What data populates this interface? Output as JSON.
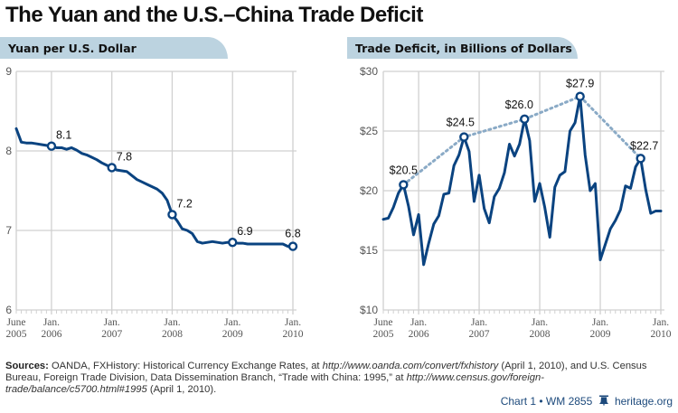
{
  "title": "The Yuan and the U.S.–China Trade Deficit",
  "colors": {
    "line": "#0a4380",
    "trend": "#8aaac6",
    "grid": "#d0d0d0",
    "tab": "#bcd3e0"
  },
  "chart_data": [
    {
      "type": "line",
      "title": "Yuan per U.S. Dollar",
      "xlabel": "",
      "ylabel": "",
      "ylim": [
        6,
        9
      ],
      "yticks": [
        "9",
        "8",
        "7",
        "6"
      ],
      "ytick_values": [
        9,
        8,
        7,
        6
      ],
      "xlim": [
        2005.4167,
        2010.0
      ],
      "xticks": [
        {
          "value": 2005.4167,
          "line1": "June",
          "line2": "2005"
        },
        {
          "value": 2006.0,
          "line1": "Jan.",
          "line2": "2006"
        },
        {
          "value": 2007.0,
          "line1": "Jan.",
          "line2": "2007"
        },
        {
          "value": 2008.0,
          "line1": "Jan.",
          "line2": "2008"
        },
        {
          "value": 2009.0,
          "line1": "Jan.",
          "line2": "2009"
        },
        {
          "value": 2010.0,
          "line1": "Jan.",
          "line2": "2010"
        }
      ],
      "grid": true,
      "series": [
        {
          "name": "Yuan per U.S. Dollar",
          "x": [
            2005.4167,
            2005.5,
            2005.5833,
            2005.6667,
            2005.75,
            2005.8333,
            2005.9167,
            2006.0,
            2006.0833,
            2006.1667,
            2006.25,
            2006.3333,
            2006.4167,
            2006.5,
            2006.5833,
            2006.6667,
            2006.75,
            2006.8333,
            2006.9167,
            2007.0,
            2007.0833,
            2007.1667,
            2007.25,
            2007.3333,
            2007.4167,
            2007.5,
            2007.5833,
            2007.6667,
            2007.75,
            2007.8333,
            2007.9167,
            2008.0,
            2008.0833,
            2008.1667,
            2008.25,
            2008.3333,
            2008.4167,
            2008.5,
            2008.5833,
            2008.6667,
            2008.75,
            2008.8333,
            2008.9167,
            2009.0,
            2009.0833,
            2009.1667,
            2009.25,
            2009.3333,
            2009.4167,
            2009.5,
            2009.5833,
            2009.6667,
            2009.75,
            2009.8333,
            2009.9167,
            2010.0
          ],
          "values": [
            8.28,
            8.11,
            8.1,
            8.1,
            8.09,
            8.08,
            8.07,
            8.06,
            8.04,
            8.04,
            8.02,
            8.04,
            8.01,
            7.97,
            7.95,
            7.92,
            7.89,
            7.85,
            7.82,
            7.79,
            7.76,
            7.75,
            7.74,
            7.69,
            7.64,
            7.61,
            7.58,
            7.55,
            7.52,
            7.47,
            7.38,
            7.2,
            7.12,
            7.02,
            7.0,
            6.96,
            6.86,
            6.84,
            6.85,
            6.86,
            6.85,
            6.84,
            6.85,
            6.85,
            6.84,
            6.84,
            6.83,
            6.83,
            6.83,
            6.83,
            6.83,
            6.83,
            6.83,
            6.83,
            6.8,
            6.8
          ]
        }
      ],
      "annotations": [
        {
          "x": 2006.0,
          "y": 8.06,
          "label": "8.1"
        },
        {
          "x": 2007.0,
          "y": 7.79,
          "label": "7.8"
        },
        {
          "x": 2008.0,
          "y": 7.2,
          "label": "7.2"
        },
        {
          "x": 2009.0,
          "y": 6.85,
          "label": "6.9"
        },
        {
          "x": 2010.0,
          "y": 6.8,
          "label": "6.8"
        }
      ]
    },
    {
      "type": "line",
      "title": "Trade Deficit, in Billions of Dollars",
      "xlabel": "",
      "ylabel": "",
      "ylim": [
        10,
        30
      ],
      "yticks": [
        "$30",
        "$25",
        "$20",
        "$15",
        "$10"
      ],
      "ytick_values": [
        30,
        25,
        20,
        15,
        10
      ],
      "xlim": [
        2005.4167,
        2010.0
      ],
      "xticks": [
        {
          "value": 2005.4167,
          "line1": "June",
          "line2": "2005"
        },
        {
          "value": 2006.0,
          "line1": "Jan.",
          "line2": "2006"
        },
        {
          "value": 2007.0,
          "line1": "Jan.",
          "line2": "2007"
        },
        {
          "value": 2008.0,
          "line1": "Jan.",
          "line2": "2008"
        },
        {
          "value": 2009.0,
          "line1": "Jan.",
          "line2": "2009"
        },
        {
          "value": 2010.0,
          "line1": "Jan.",
          "line2": "2010"
        }
      ],
      "grid": true,
      "series": [
        {
          "name": "Trade Deficit",
          "x": [
            2005.4167,
            2005.5,
            2005.5833,
            2005.6667,
            2005.75,
            2005.8333,
            2005.9167,
            2006.0,
            2006.0833,
            2006.1667,
            2006.25,
            2006.3333,
            2006.4167,
            2006.5,
            2006.5833,
            2006.6667,
            2006.75,
            2006.8333,
            2006.9167,
            2007.0,
            2007.0833,
            2007.1667,
            2007.25,
            2007.3333,
            2007.4167,
            2007.5,
            2007.5833,
            2007.6667,
            2007.75,
            2007.8333,
            2007.9167,
            2008.0,
            2008.0833,
            2008.1667,
            2008.25,
            2008.3333,
            2008.4167,
            2008.5,
            2008.5833,
            2008.6667,
            2008.75,
            2008.8333,
            2008.9167,
            2009.0,
            2009.0833,
            2009.1667,
            2009.25,
            2009.3333,
            2009.4167,
            2009.5,
            2009.5833,
            2009.6667,
            2009.75,
            2009.8333,
            2009.9167,
            2010.0
          ],
          "values": [
            17.6,
            17.7,
            18.6,
            19.8,
            20.5,
            18.7,
            16.3,
            18.0,
            13.8,
            15.6,
            17.2,
            17.9,
            19.7,
            19.8,
            22.1,
            23.0,
            24.5,
            23.3,
            19.1,
            21.3,
            18.5,
            17.3,
            19.5,
            20.2,
            21.5,
            23.9,
            22.9,
            23.9,
            26.0,
            24.2,
            19.1,
            20.6,
            18.6,
            16.1,
            20.3,
            21.3,
            21.6,
            25.0,
            25.7,
            27.9,
            23.0,
            20.0,
            20.6,
            14.2,
            15.5,
            16.8,
            17.5,
            18.4,
            20.4,
            20.2,
            22.0,
            22.7,
            20.1,
            18.1,
            18.3,
            18.3
          ]
        },
        {
          "name": "Annual peak trend",
          "x": [
            2005.75,
            2006.75,
            2007.75,
            2008.6667,
            2009.6667
          ],
          "values": [
            20.5,
            24.5,
            26.0,
            27.9,
            22.7
          ]
        }
      ],
      "annotations": [
        {
          "x": 2005.75,
          "y": 20.5,
          "label": "$20.5"
        },
        {
          "x": 2006.75,
          "y": 24.5,
          "label": "$24.5"
        },
        {
          "x": 2007.75,
          "y": 26.0,
          "label": "$26.0"
        },
        {
          "x": 2008.6667,
          "y": 27.9,
          "label": "$27.9"
        },
        {
          "x": 2009.6667,
          "y": 22.7,
          "label": "$22.7"
        }
      ]
    }
  ],
  "sources": {
    "label": "Sources:",
    "text1": " OANDA, FXHistory: Historical Currency Exchange Rates, at ",
    "url1": "http://www.oanda.com/convert/fxhistory",
    "text2": " (April 1, 2010), and U.S. Census Bureau, Foreign Trade Division, Data Dissemination Branch, “Trade with China: 1995,” at ",
    "url2": "http://www.census.gov/foreign-trade/balance/c5700.html#1995",
    "text3": " (April 1, 2010)."
  },
  "credit": {
    "chart": "Chart 1 • WM 2855",
    "icon": "liberty-bell-icon",
    "site": "heritage.org"
  }
}
